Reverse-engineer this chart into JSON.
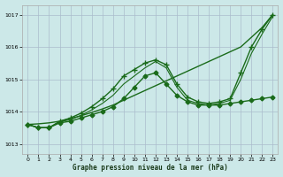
{
  "title": "Graphe pression niveau de la mer (hPa)",
  "background_color": "#cce8e8",
  "grid_color": "#aabccc",
  "line_color": "#1a6b1a",
  "xlim": [
    -0.5,
    23.5
  ],
  "ylim": [
    1012.7,
    1017.3
  ],
  "xticks": [
    0,
    1,
    2,
    3,
    4,
    5,
    6,
    7,
    8,
    9,
    10,
    11,
    12,
    13,
    14,
    15,
    16,
    17,
    18,
    19,
    20,
    21,
    22,
    23
  ],
  "yticks": [
    1013,
    1014,
    1015,
    1016,
    1017
  ],
  "lines": [
    {
      "x": [
        0,
        1,
        2,
        3,
        4,
        5,
        6,
        7,
        8,
        9,
        10,
        11,
        12,
        13,
        14,
        15,
        16,
        17,
        18,
        19,
        20,
        21,
        22,
        23
      ],
      "y": [
        1013.6,
        1013.62,
        1013.65,
        1013.7,
        1013.78,
        1013.87,
        1013.97,
        1014.08,
        1014.2,
        1014.35,
        1014.5,
        1014.65,
        1014.8,
        1014.95,
        1015.1,
        1015.25,
        1015.4,
        1015.55,
        1015.7,
        1015.85,
        1016.0,
        1016.3,
        1016.6,
        1017.0
      ],
      "marker": null,
      "linestyle": "-",
      "linewidth": 1.0
    },
    {
      "x": [
        0,
        1,
        2,
        3,
        4,
        5,
        6,
        7,
        8,
        9,
        10,
        11,
        12,
        13,
        14,
        15,
        16,
        17,
        18,
        19,
        20,
        21,
        22,
        23
      ],
      "y": [
        1013.6,
        1013.5,
        1013.5,
        1013.65,
        1013.7,
        1013.8,
        1013.9,
        1014.0,
        1014.15,
        1014.4,
        1014.75,
        1015.1,
        1015.2,
        1014.85,
        1014.5,
        1014.3,
        1014.2,
        1014.2,
        1014.2,
        1014.25,
        1014.3,
        1014.35,
        1014.4,
        1014.45
      ],
      "marker": "D",
      "linestyle": "-",
      "linewidth": 1.0,
      "markersize": 2.5
    },
    {
      "x": [
        0,
        1,
        2,
        3,
        4,
        5,
        6,
        7,
        8,
        9,
        10,
        11,
        12,
        13,
        14,
        15,
        16,
        17,
        18,
        19,
        20,
        21,
        22,
        23
      ],
      "y": [
        1013.6,
        1013.5,
        1013.5,
        1013.7,
        1013.8,
        1013.95,
        1014.15,
        1014.4,
        1014.7,
        1015.1,
        1015.3,
        1015.5,
        1015.6,
        1015.45,
        1014.85,
        1014.45,
        1014.3,
        1014.25,
        1014.3,
        1014.4,
        1015.2,
        1016.0,
        1016.55,
        1017.0
      ],
      "marker": "+",
      "linestyle": "-",
      "linewidth": 1.0,
      "markersize": 4
    },
    {
      "x": [
        0,
        1,
        2,
        3,
        4,
        5,
        6,
        7,
        8,
        9,
        10,
        11,
        12,
        13,
        14,
        15,
        16,
        17,
        18,
        19,
        20,
        21,
        22,
        23
      ],
      "y": [
        1013.6,
        1013.5,
        1013.5,
        1013.68,
        1013.75,
        1013.88,
        1014.05,
        1014.25,
        1014.5,
        1014.85,
        1015.1,
        1015.35,
        1015.55,
        1015.35,
        1014.75,
        1014.35,
        1014.25,
        1014.2,
        1014.25,
        1014.35,
        1015.0,
        1015.8,
        1016.4,
        1016.95
      ],
      "marker": null,
      "linestyle": "-",
      "linewidth": 0.8
    }
  ]
}
